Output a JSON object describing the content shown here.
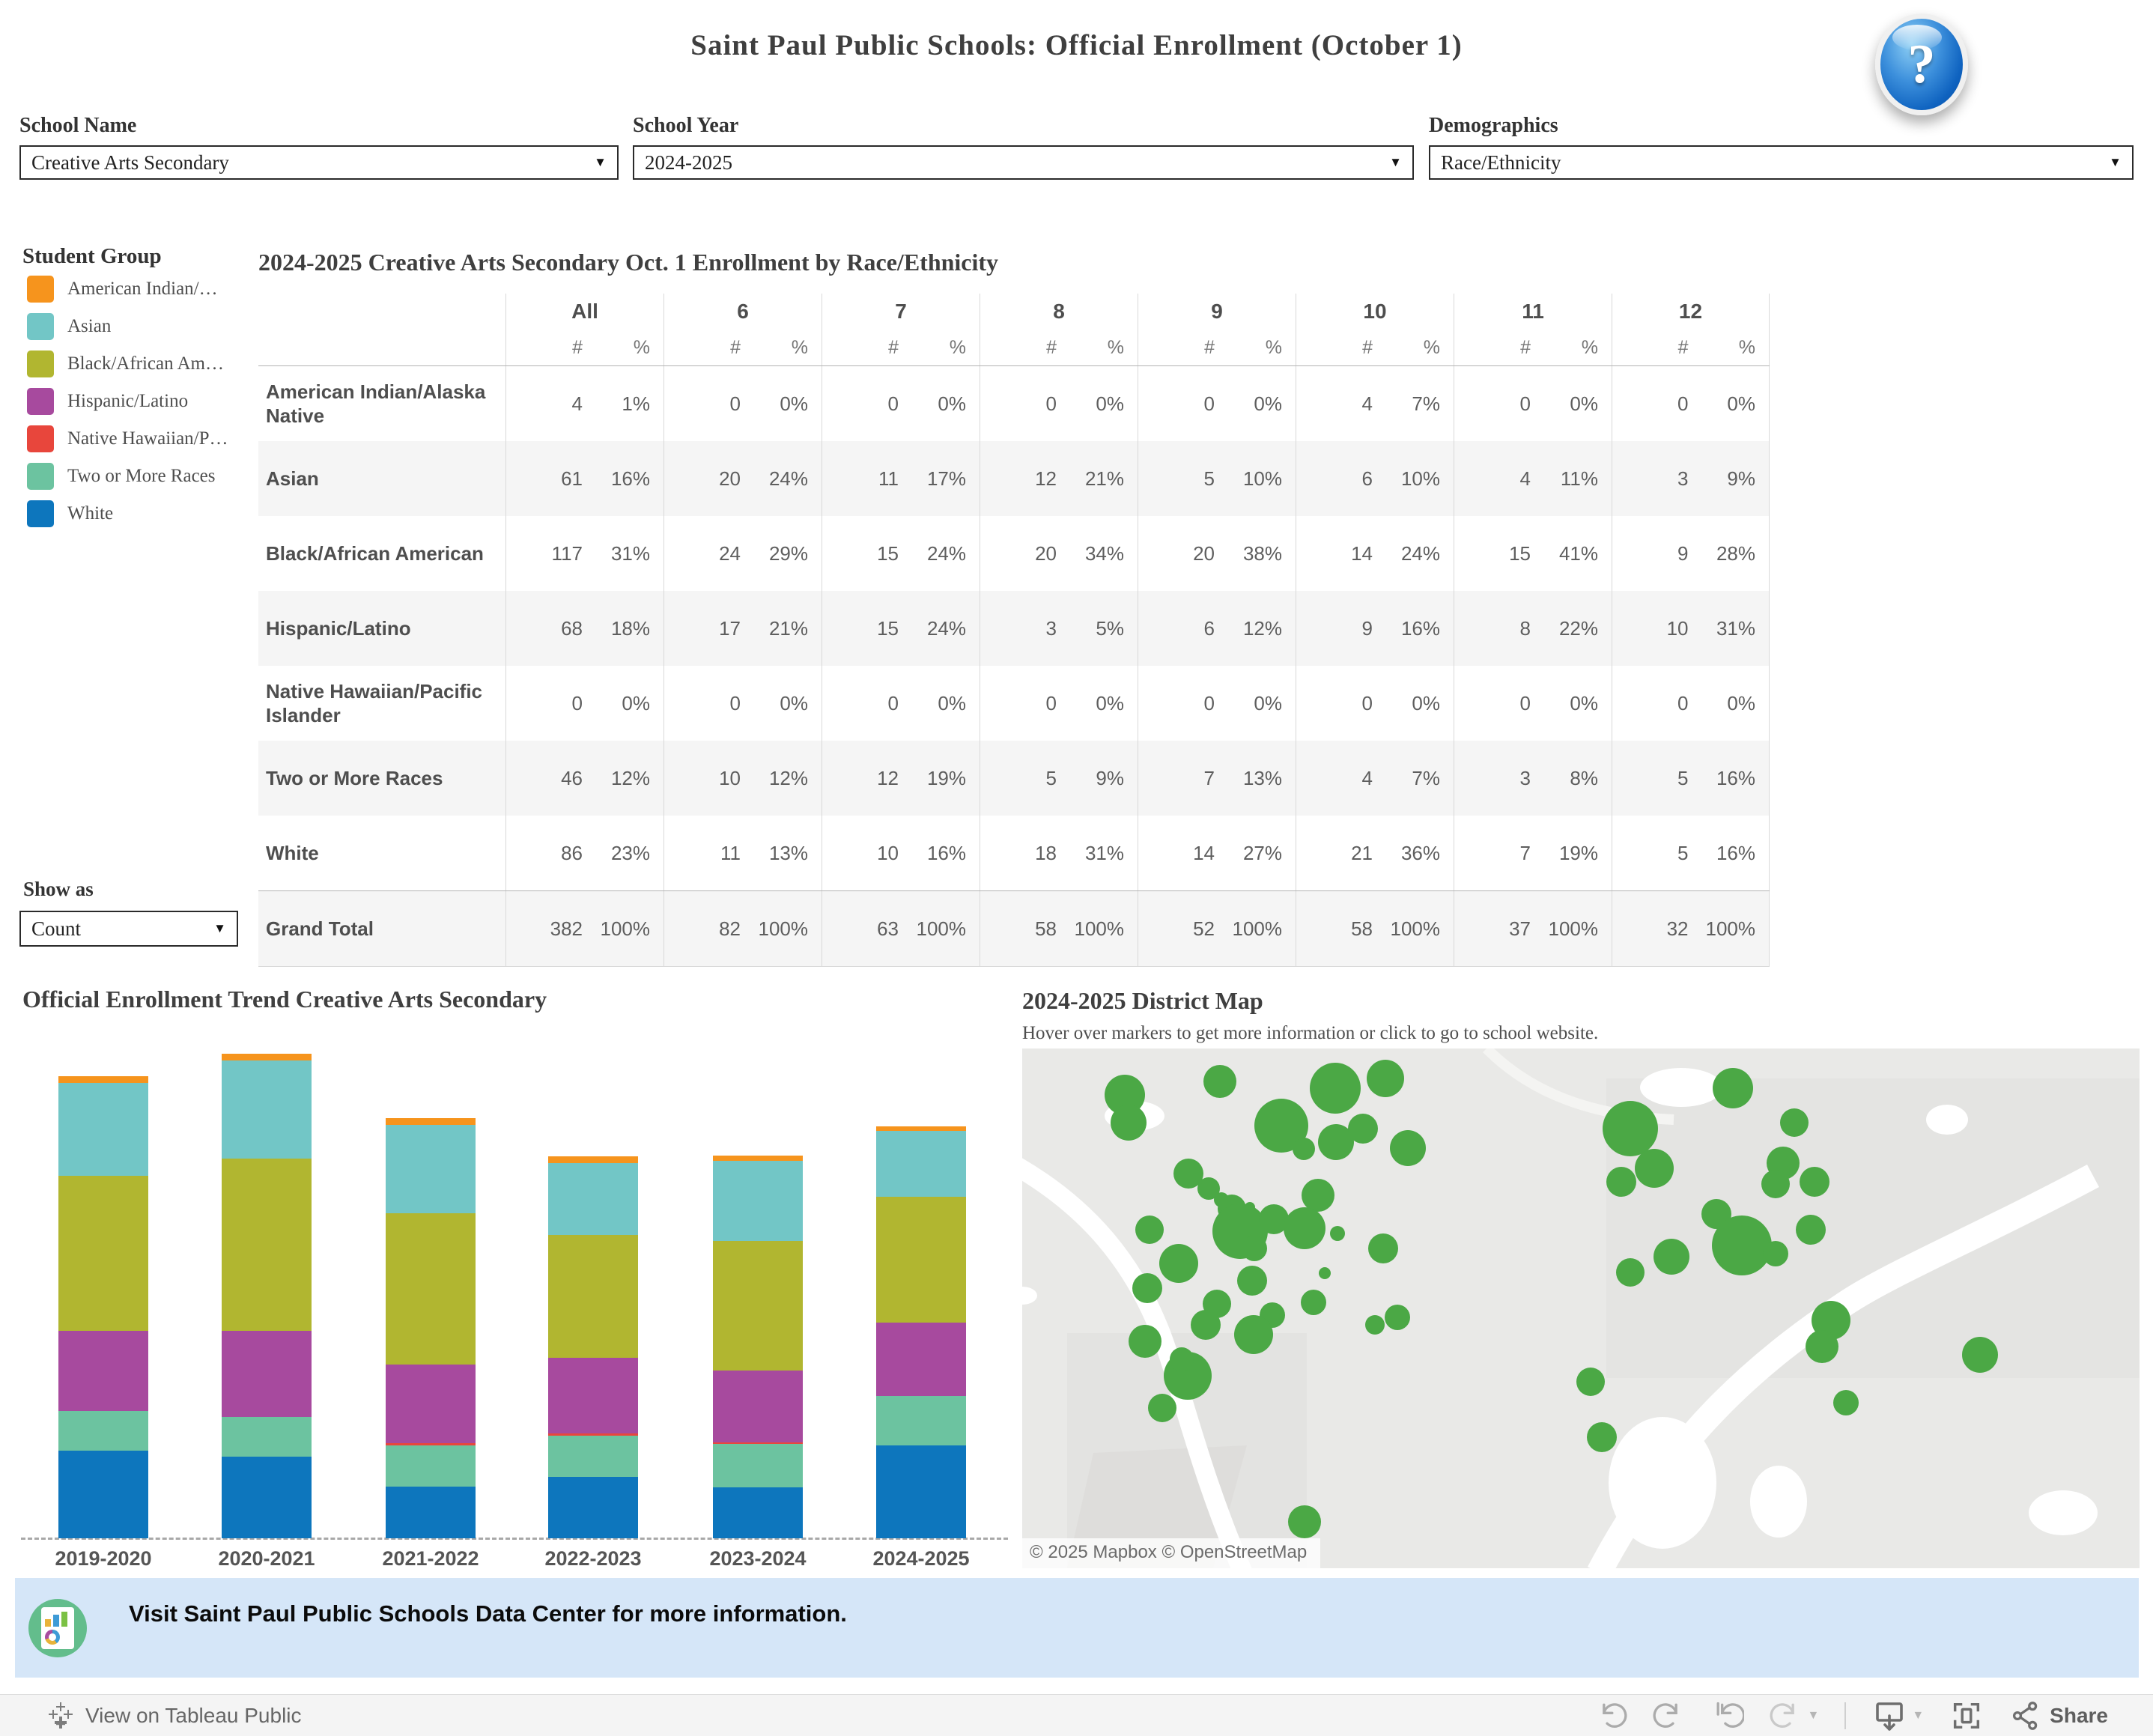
{
  "header": {
    "title": "Saint Paul Public Schools: Official Enrollment (October 1)",
    "help_glyph": "?"
  },
  "filters": {
    "school_name": {
      "label": "School Name",
      "value": "Creative Arts Secondary"
    },
    "school_year": {
      "label": "School Year",
      "value": "2024-2025"
    },
    "demographics": {
      "label": "Demographics",
      "value": "Race/Ethnicity"
    }
  },
  "legend": {
    "title": "Student Group",
    "items": [
      {
        "label": "American Indian/…",
        "color": "#f6941d"
      },
      {
        "label": "Asian",
        "color": "#72c6c6"
      },
      {
        "label": "Black/African Am…",
        "color": "#b1b630"
      },
      {
        "label": "Hispanic/Latino",
        "color": "#a74a9e"
      },
      {
        "label": "Native Hawaiian/P…",
        "color": "#e8463c"
      },
      {
        "label": "Two or More Races",
        "color": "#6cc3a0"
      },
      {
        "label": "White",
        "color": "#0d76bd"
      }
    ]
  },
  "show_as": {
    "label": "Show as",
    "value": "Count"
  },
  "chart_data": [
    {
      "type": "bar",
      "stacked": true,
      "title": "Official Enrollment Trend Creative Arts Secondary",
      "categories": [
        "2019-2020",
        "2020-2021",
        "2021-2022",
        "2022-2023",
        "2023-2024",
        "2024-2025"
      ],
      "series": [
        {
          "name": "White",
          "color": "#0d76bd",
          "values": [
            81,
            76,
            48,
            57,
            47,
            86
          ]
        },
        {
          "name": "Two or More Races",
          "color": "#6cc3a0",
          "values": [
            37,
            37,
            38,
            38,
            40,
            46
          ]
        },
        {
          "name": "Native Hawaiian/Pacific Islander",
          "color": "#e8463c",
          "values": [
            0,
            0,
            2,
            2,
            1,
            0
          ]
        },
        {
          "name": "Hispanic/Latino",
          "color": "#a74a9e",
          "values": [
            74,
            80,
            73,
            70,
            67,
            68
          ]
        },
        {
          "name": "Black/African American",
          "color": "#b1b630",
          "values": [
            144,
            160,
            140,
            114,
            120,
            117
          ]
        },
        {
          "name": "Asian",
          "color": "#72c6c6",
          "values": [
            86,
            91,
            82,
            67,
            74,
            61
          ]
        },
        {
          "name": "American Indian/Alaska Native",
          "color": "#f6941d",
          "values": [
            6,
            6,
            6,
            6,
            5,
            4
          ]
        }
      ],
      "totals": [
        428,
        450,
        389,
        354,
        354,
        382
      ],
      "xlabel": "",
      "ylabel": "",
      "grid": false,
      "legend_position": "left"
    },
    {
      "type": "table",
      "title": "2024-2025 Creative Arts Secondary Oct. 1 Enrollment by Race/Ethnicity",
      "column_groups": [
        "All",
        "6",
        "7",
        "8",
        "9",
        "10",
        "11",
        "12"
      ],
      "sub_columns": [
        "#",
        "%"
      ],
      "rows": [
        {
          "label": "American Indian/Alaska Native",
          "cells": [
            "4",
            "1%",
            "0",
            "0%",
            "0",
            "0%",
            "0",
            "0%",
            "0",
            "0%",
            "4",
            "7%",
            "0",
            "0%",
            "0",
            "0%"
          ]
        },
        {
          "label": "Asian",
          "cells": [
            "61",
            "16%",
            "20",
            "24%",
            "11",
            "17%",
            "12",
            "21%",
            "5",
            "10%",
            "6",
            "10%",
            "4",
            "11%",
            "3",
            "9%"
          ]
        },
        {
          "label": "Black/African American",
          "cells": [
            "117",
            "31%",
            "24",
            "29%",
            "15",
            "24%",
            "20",
            "34%",
            "20",
            "38%",
            "14",
            "24%",
            "15",
            "41%",
            "9",
            "28%"
          ]
        },
        {
          "label": "Hispanic/Latino",
          "cells": [
            "68",
            "18%",
            "17",
            "21%",
            "15",
            "24%",
            "3",
            "5%",
            "6",
            "12%",
            "9",
            "16%",
            "8",
            "22%",
            "10",
            "31%"
          ]
        },
        {
          "label": "Native Hawaiian/Pacific Islander",
          "cells": [
            "0",
            "0%",
            "0",
            "0%",
            "0",
            "0%",
            "0",
            "0%",
            "0",
            "0%",
            "0",
            "0%",
            "0",
            "0%",
            "0",
            "0%"
          ]
        },
        {
          "label": "Two or More Races",
          "cells": [
            "46",
            "12%",
            "10",
            "12%",
            "12",
            "19%",
            "5",
            "9%",
            "7",
            "13%",
            "4",
            "7%",
            "3",
            "8%",
            "5",
            "16%"
          ]
        },
        {
          "label": "White",
          "cells": [
            "86",
            "23%",
            "11",
            "13%",
            "10",
            "16%",
            "18",
            "31%",
            "14",
            "27%",
            "21",
            "36%",
            "7",
            "19%",
            "5",
            "16%"
          ]
        },
        {
          "label": "Grand Total",
          "total": true,
          "cells": [
            "382",
            "100%",
            "82",
            "100%",
            "63",
            "100%",
            "58",
            "100%",
            "52",
            "100%",
            "58",
            "100%",
            "37",
            "100%",
            "32",
            "100%"
          ]
        }
      ]
    }
  ],
  "map": {
    "title": "2024-2025 District Map",
    "subtitle": "Hover over markers to get more information or click to go to school website.",
    "attribution": "© 2025 Mapbox  © OpenStreetMap",
    "marker_color": "#4ba845",
    "markers": [
      [
        0.177,
        0.064,
        22
      ],
      [
        0.092,
        0.09,
        27
      ],
      [
        0.095,
        0.142,
        24
      ],
      [
        0.28,
        0.076,
        34
      ],
      [
        0.325,
        0.058,
        25
      ],
      [
        0.232,
        0.149,
        36
      ],
      [
        0.252,
        0.193,
        15
      ],
      [
        0.281,
        0.18,
        24
      ],
      [
        0.305,
        0.154,
        20
      ],
      [
        0.345,
        0.191,
        24
      ],
      [
        0.149,
        0.24,
        20
      ],
      [
        0.167,
        0.269,
        15
      ],
      [
        0.178,
        0.291,
        10
      ],
      [
        0.188,
        0.309,
        19
      ],
      [
        0.204,
        0.306,
        7
      ],
      [
        0.265,
        0.283,
        22
      ],
      [
        0.195,
        0.352,
        37
      ],
      [
        0.208,
        0.385,
        17
      ],
      [
        0.225,
        0.329,
        20
      ],
      [
        0.253,
        0.346,
        28
      ],
      [
        0.282,
        0.356,
        10
      ],
      [
        0.114,
        0.348,
        19
      ],
      [
        0.14,
        0.414,
        26
      ],
      [
        0.112,
        0.461,
        20
      ],
      [
        0.206,
        0.447,
        20
      ],
      [
        0.174,
        0.491,
        19
      ],
      [
        0.224,
        0.513,
        17
      ],
      [
        0.261,
        0.488,
        17
      ],
      [
        0.271,
        0.432,
        8
      ],
      [
        0.164,
        0.532,
        20
      ],
      [
        0.207,
        0.55,
        26
      ],
      [
        0.11,
        0.564,
        22
      ],
      [
        0.148,
        0.629,
        32
      ],
      [
        0.143,
        0.598,
        16
      ],
      [
        0.125,
        0.691,
        19
      ],
      [
        0.323,
        0.385,
        20
      ],
      [
        0.336,
        0.518,
        17
      ],
      [
        0.316,
        0.532,
        13
      ],
      [
        0.253,
        0.91,
        22
      ],
      [
        0.636,
        0.077,
        27
      ],
      [
        0.544,
        0.154,
        37
      ],
      [
        0.566,
        0.231,
        26
      ],
      [
        0.536,
        0.256,
        20
      ],
      [
        0.691,
        0.143,
        19
      ],
      [
        0.681,
        0.22,
        22
      ],
      [
        0.674,
        0.261,
        19
      ],
      [
        0.709,
        0.256,
        20
      ],
      [
        0.621,
        0.318,
        20
      ],
      [
        0.644,
        0.379,
        40
      ],
      [
        0.706,
        0.349,
        20
      ],
      [
        0.674,
        0.395,
        17
      ],
      [
        0.581,
        0.4,
        24
      ],
      [
        0.544,
        0.431,
        19
      ],
      [
        0.724,
        0.523,
        26
      ],
      [
        0.716,
        0.574,
        22
      ],
      [
        0.857,
        0.589,
        24
      ],
      [
        0.509,
        0.641,
        19
      ],
      [
        0.737,
        0.682,
        17
      ],
      [
        0.519,
        0.748,
        20
      ]
    ]
  },
  "banner": {
    "text": "Visit Saint Paul Public Schools Data Center for more information.",
    "background": "#d5e6f8"
  },
  "toolbar": {
    "view_label": "View on Tableau Public",
    "share_label": "Share"
  }
}
